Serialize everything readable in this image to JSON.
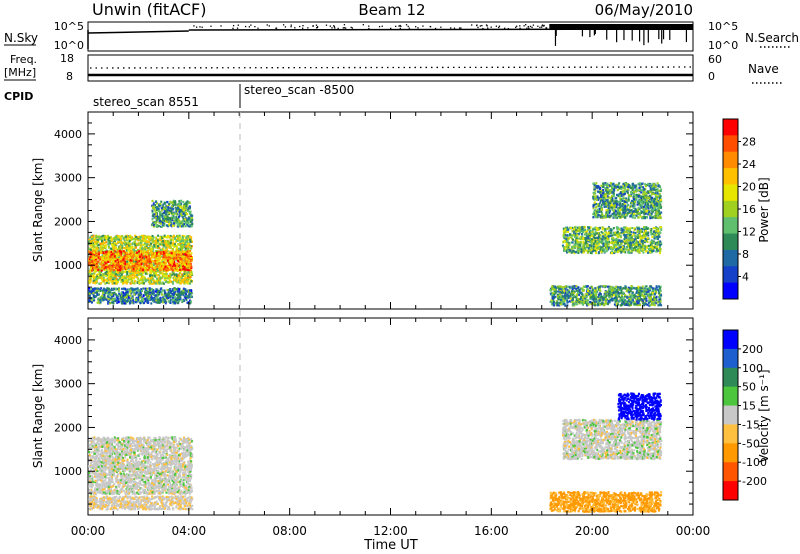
{
  "header": {
    "station": "Unwin (fitACF)",
    "beam": "Beam 12",
    "date": "06/May/2010"
  },
  "panels": {
    "nsky": {
      "left_label": "N.Sky",
      "left_ticks": [
        "10^5",
        "10^0"
      ],
      "right_label": "N.Search",
      "right_ticks": [
        "10^5",
        "10^0"
      ]
    },
    "freq": {
      "left_label_1": "Freq.",
      "left_label_2": "[MHz]",
      "left_ticks": [
        "18",
        "8"
      ],
      "right_label": "Nave",
      "right_ticks": [
        "60",
        "0"
      ]
    },
    "cpid": {
      "label": "CPID",
      "segments": [
        "stereo_scan 8551",
        "stereo_scan -8500"
      ]
    }
  },
  "power_colorbar": {
    "label": "Power [dB]",
    "ticks": [
      "28",
      "24",
      "20",
      "16",
      "12",
      "8",
      "4"
    ],
    "colors": [
      "#ff0000",
      "#ff4e00",
      "#ff8c00",
      "#ffc000",
      "#e6e600",
      "#a0d020",
      "#5fbf6f",
      "#2e8b57",
      "#1f6aa5",
      "#1540c8",
      "#0000ff"
    ]
  },
  "velocity_colorbar": {
    "label": "Velocity [m s⁻¹]",
    "ticks": [
      "200",
      "100",
      "50",
      "15",
      "-15",
      "-50",
      "-100",
      "-200"
    ],
    "colors": [
      "#0000ff",
      "#1e5fd0",
      "#2e8b57",
      "#4cc63c",
      "#c8c8c8",
      "#ffc040",
      "#ff9900",
      "#ff5500",
      "#ff0000"
    ]
  },
  "chart_data": [
    {
      "type": "heatmap",
      "title": "Power",
      "xlabel": "",
      "ylabel": "Slant Range [km]",
      "xlim": [
        0,
        24
      ],
      "ylim": [
        0,
        4500
      ],
      "x_ticks": [
        "00:00",
        "04:00",
        "08:00",
        "12:00",
        "16:00",
        "20:00",
        "00:00"
      ],
      "y_ticks": [
        "1000",
        "2000",
        "3000",
        "4000"
      ],
      "regions": [
        {
          "t0": 0.0,
          "t1": 4.1,
          "r0": 600,
          "r1": 1700,
          "value_db": 16
        },
        {
          "t0": 0.0,
          "t1": 4.1,
          "r0": 900,
          "r1": 1350,
          "value_db": 24
        },
        {
          "t0": 0.0,
          "t1": 4.1,
          "r0": 150,
          "r1": 500,
          "value_db": 8
        },
        {
          "t0": 2.5,
          "t1": 4.1,
          "r0": 1900,
          "r1": 2500,
          "value_db": 10
        },
        {
          "t0": 18.3,
          "t1": 22.7,
          "r0": 100,
          "r1": 550,
          "value_db": 10
        },
        {
          "t0": 18.8,
          "t1": 22.7,
          "r0": 1300,
          "r1": 1900,
          "value_db": 12
        },
        {
          "t0": 20.0,
          "t1": 22.7,
          "r0": 2100,
          "r1": 2900,
          "value_db": 10
        }
      ]
    },
    {
      "type": "heatmap",
      "title": "Velocity",
      "xlabel": "Time UT",
      "ylabel": "Slant Range [km]",
      "xlim": [
        0,
        24
      ],
      "ylim": [
        0,
        4500
      ],
      "x_ticks": [
        "00:00",
        "04:00",
        "08:00",
        "12:00",
        "16:00",
        "20:00",
        "00:00"
      ],
      "y_ticks": [
        "1000",
        "2000",
        "3000",
        "4000"
      ],
      "regions": [
        {
          "t0": 0.0,
          "t1": 4.1,
          "r0": 500,
          "r1": 1800,
          "value_ms": 0
        },
        {
          "t0": 0.0,
          "t1": 4.1,
          "r0": 150,
          "r1": 450,
          "value_ms": -10
        },
        {
          "t0": 18.3,
          "t1": 22.7,
          "r0": 100,
          "r1": 550,
          "value_ms": -40
        },
        {
          "t0": 18.8,
          "t1": 22.7,
          "r0": 1300,
          "r1": 2200,
          "value_ms": 0
        },
        {
          "t0": 21.0,
          "t1": 22.7,
          "r0": 2200,
          "r1": 2800,
          "value_ms": 200
        }
      ]
    }
  ]
}
